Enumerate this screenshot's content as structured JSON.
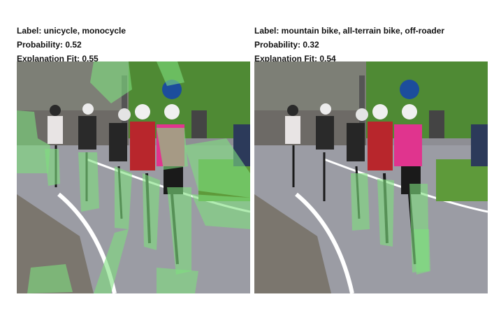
{
  "panels": [
    {
      "label": "Label: unicycle, monocycle",
      "probability": "Probability: 0.52",
      "fit": "Explanation Fit: 0.55"
    },
    {
      "label": "Label: mountain bike, all-terrain bike, off-roader",
      "probability": "Probability: 0.32",
      "fit": "Explanation Fit: 0.54"
    }
  ],
  "colors": {
    "overlay": "#7fe07f",
    "road": "#9a9aa2",
    "grass": "#5e9a3a",
    "jersey_red": "#b8262c",
    "jersey_pink": "#e0348e"
  }
}
